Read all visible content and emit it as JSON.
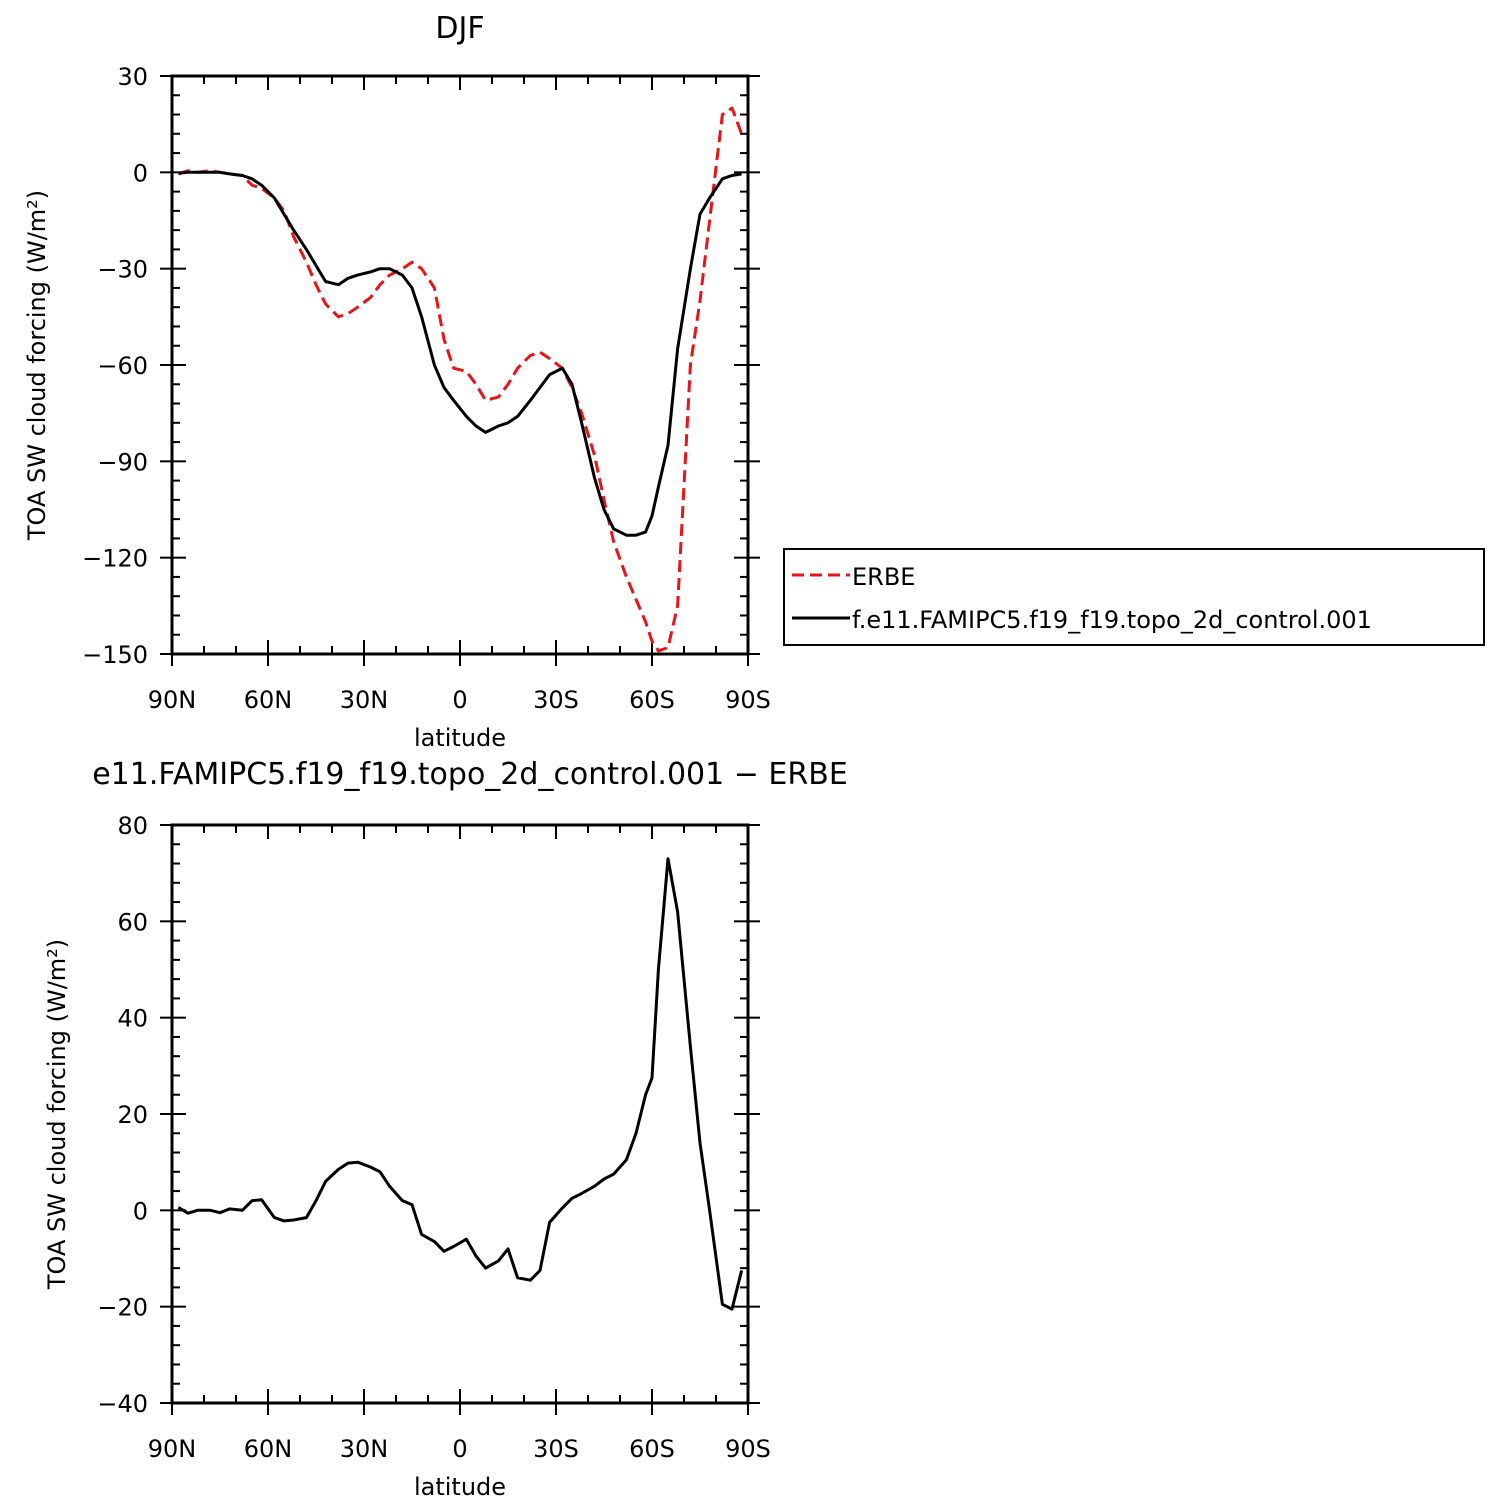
{
  "chart_data": [
    {
      "type": "line",
      "title": "DJF",
      "xlabel": "latitude",
      "ylabel": "TOA SW cloud forcing (W/m²)",
      "xlim": [
        -90,
        90
      ],
      "ylim": [
        -150,
        30
      ],
      "xticks": [
        -90,
        -60,
        -30,
        0,
        30,
        60,
        90
      ],
      "xtick_labels": [
        "90N",
        "60N",
        "30N",
        "0",
        "30S",
        "60S",
        "90S"
      ],
      "yticks": [
        30,
        0,
        -30,
        -60,
        -90,
        -120,
        -150
      ],
      "ytick_labels": [
        "30",
        "0",
        "−30",
        "−60",
        "−90",
        "−120",
        "−150"
      ],
      "legend": {
        "position": "right",
        "entries": [
          "ERBE",
          "f.e11.FAMIPC5.f19_f19.topo_2d_control.001"
        ]
      },
      "series": [
        {
          "name": "ERBE",
          "color": "#e8141a",
          "dash": true,
          "x": [
            -88,
            -85,
            -82,
            -78,
            -75,
            -72,
            -68,
            -65,
            -62,
            -58,
            -55,
            -52,
            -48,
            -45,
            -42,
            -38,
            -35,
            -32,
            -28,
            -25,
            -22,
            -18,
            -15,
            -12,
            -8,
            -5,
            -2,
            2,
            5,
            8,
            12,
            15,
            18,
            22,
            25,
            28,
            32,
            35,
            38,
            42,
            45,
            48,
            52,
            55,
            58,
            60,
            62,
            65,
            68,
            72,
            75,
            78,
            82,
            85,
            88
          ],
          "y": [
            -0.5,
            0.5,
            0,
            0.5,
            0,
            -0.5,
            -1,
            -4,
            -5,
            -8,
            -12,
            -20,
            -28,
            -35,
            -41,
            -45,
            -44,
            -42,
            -39,
            -35,
            -32,
            -30,
            -28,
            -30,
            -36,
            -52,
            -61,
            -62,
            -66,
            -71,
            -70,
            -66,
            -61,
            -57,
            -56,
            -58,
            -61,
            -67,
            -75,
            -88,
            -102,
            -115,
            -126,
            -133,
            -140,
            -146,
            -149,
            -148,
            -135,
            -60,
            -40,
            -15,
            18,
            20,
            12
          ]
        },
        {
          "name": "f.e11.FAMIPC5.f19_f19.topo_2d_control.001",
          "color": "#000000",
          "dash": false,
          "x": [
            -88,
            -85,
            -82,
            -78,
            -75,
            -72,
            -68,
            -65,
            -62,
            -58,
            -55,
            -52,
            -48,
            -45,
            -42,
            -38,
            -35,
            -32,
            -28,
            -25,
            -22,
            -18,
            -15,
            -12,
            -8,
            -5,
            -2,
            2,
            5,
            8,
            12,
            15,
            18,
            22,
            25,
            28,
            32,
            35,
            38,
            42,
            45,
            48,
            52,
            55,
            58,
            60,
            62,
            65,
            68,
            72,
            75,
            78,
            82,
            85,
            88
          ],
          "y": [
            -0.3,
            0,
            0,
            0,
            0,
            -0.5,
            -1,
            -2,
            -4,
            -8,
            -13,
            -18,
            -24,
            -29,
            -34,
            -35,
            -33,
            -32,
            -31,
            -30,
            -30,
            -32,
            -36,
            -45,
            -60,
            -67,
            -71,
            -76,
            -79,
            -81,
            -79,
            -78,
            -76,
            -71,
            -67,
            -63,
            -61,
            -66,
            -78,
            -95,
            -105,
            -111,
            -113,
            -113,
            -112,
            -107,
            -98,
            -85,
            -55,
            -30,
            -13,
            -8,
            -2,
            -1,
            -0.5
          ]
        }
      ]
    },
    {
      "type": "line",
      "title": "e11.FAMIPC5.f19_f19.topo_2d_control.001  −  ERBE",
      "xlabel": "latitude",
      "ylabel": "TOA SW cloud forcing (W/m²)",
      "xlim": [
        -90,
        90
      ],
      "ylim": [
        -40,
        80
      ],
      "xticks": [
        -90,
        -60,
        -30,
        0,
        30,
        60,
        90
      ],
      "xtick_labels": [
        "90N",
        "60N",
        "30N",
        "0",
        "30S",
        "60S",
        "90S"
      ],
      "yticks": [
        80,
        60,
        40,
        20,
        0,
        -20,
        -40
      ],
      "ytick_labels": [
        "80",
        "60",
        "40",
        "20",
        "0",
        "−20",
        "−40"
      ],
      "series": [
        {
          "color": "#000000",
          "dash": false,
          "x": [
            -88,
            -85,
            -82,
            -78,
            -75,
            -72,
            -68,
            -65,
            -62,
            -58,
            -55,
            -52,
            -48,
            -45,
            -42,
            -38,
            -35,
            -32,
            -28,
            -25,
            -22,
            -18,
            -15,
            -12,
            -8,
            -5,
            -2,
            2,
            5,
            8,
            12,
            15,
            18,
            22,
            25,
            28,
            32,
            35,
            38,
            42,
            45,
            48,
            52,
            55,
            58,
            60,
            62,
            65,
            68,
            72,
            75,
            78,
            82,
            85,
            88
          ],
          "y": [
            0.6,
            -0.6,
            0,
            0,
            -0.5,
            0.3,
            0,
            2,
            2.2,
            -1.5,
            -2.2,
            -2,
            -1.5,
            2,
            6,
            8.5,
            9.8,
            10,
            9,
            8,
            5,
            2,
            1.2,
            -5,
            -6.5,
            -8.5,
            -7.5,
            -6,
            -9.5,
            -12,
            -10.5,
            -8,
            -14,
            -14.5,
            -12.5,
            -2.5,
            0.5,
            2.5,
            3.5,
            5,
            6.5,
            7.5,
            10.5,
            16,
            24,
            27.5,
            50,
            73,
            62,
            34,
            14,
            0,
            -19.5,
            -20.5,
            -12.5
          ]
        }
      ]
    }
  ]
}
